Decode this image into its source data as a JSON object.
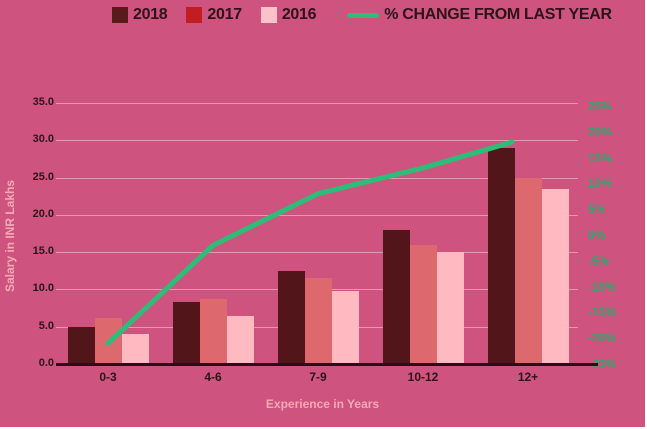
{
  "legend": {
    "items": [
      {
        "label": "2018",
        "swatch": "#5a1a1c",
        "kind": "square"
      },
      {
        "label": "2017",
        "swatch": "#c11e21",
        "kind": "square"
      },
      {
        "label": "2016",
        "swatch": "#fac2c9",
        "kind": "square"
      },
      {
        "label": "% CHANGE FROM LAST YEAR",
        "swatch": "#2dbd79",
        "kind": "line"
      }
    ]
  },
  "axes": {
    "left_title": "Salary in INR Lakhs",
    "x_title": "Experience in Years"
  },
  "chart_data": {
    "type": "bar",
    "title": "",
    "categories": [
      "0-3",
      "4-6",
      "7-9",
      "10-12",
      "12+"
    ],
    "series": [
      {
        "name": "2018",
        "color": "#521519",
        "values": [
          5.0,
          8.3,
          12.5,
          18.0,
          29.0
        ]
      },
      {
        "name": "2017",
        "color": "#dd686d",
        "values": [
          6.2,
          8.7,
          11.5,
          16.0,
          25.0
        ]
      },
      {
        "name": "2016",
        "color": "#ffb9c0",
        "values": [
          4.0,
          6.5,
          9.8,
          15.0,
          23.5
        ]
      }
    ],
    "line_series": {
      "name": "% CHANGE FROM LAST YEAR",
      "color": "#2dbd79",
      "values": [
        -21,
        -2,
        8,
        13,
        18
      ]
    },
    "xlabel": "Experience in Years",
    "ylabel_left": "Salary in INR Lakhs",
    "left_ylim": [
      0,
      35
    ],
    "right_ylim": [
      -25,
      25
    ],
    "left_tick_labels": [
      "35.0",
      "30.0",
      "25.0",
      "20.0",
      "15.0",
      "10.0",
      "5.0",
      "0.0"
    ],
    "left_tick_values": [
      35,
      30,
      25,
      20,
      15,
      10,
      5,
      0
    ],
    "right_tick_labels": [
      "25%",
      "20%",
      "15%",
      "10%",
      "5%",
      "0%",
      "-5%",
      "-10%",
      "-15%",
      "-20%",
      "-25%"
    ],
    "right_tick_values": [
      25,
      20,
      15,
      10,
      5,
      0,
      -5,
      -10,
      -15,
      -20,
      -25
    ],
    "grid": true,
    "legend_position": "top"
  },
  "colors": {
    "background": "#ce537e",
    "grid": "#dd84a4",
    "axis_line": "#241018",
    "dark_text": "#2d1418",
    "light_text": "#f3aab6",
    "green_text": "#2aa86d",
    "green_line": "#2dbd79"
  }
}
